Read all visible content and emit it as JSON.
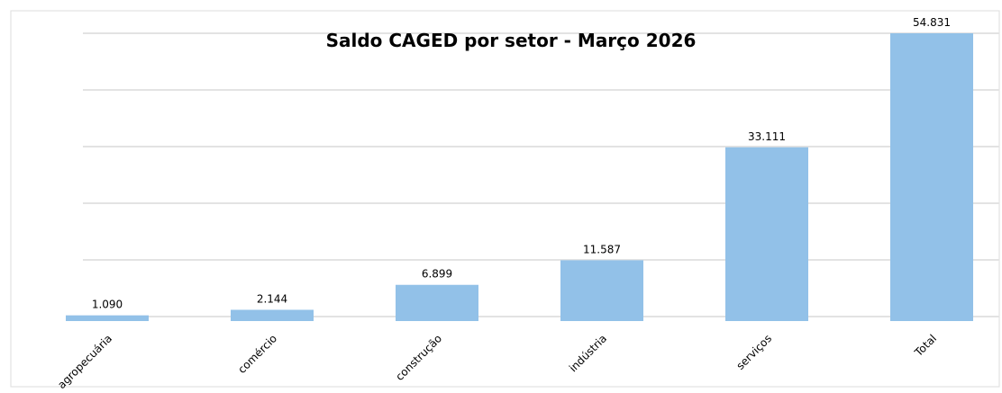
{
  "chart_data": {
    "type": "bar",
    "title": "Saldo CAGED por setor - Março 2026",
    "categories": [
      "agropecuária",
      "comércio",
      "construção",
      "indústria",
      "serviços",
      "Total"
    ],
    "values": [
      1090,
      2144,
      6899,
      11587,
      33111,
      54831
    ],
    "value_labels": [
      "1.090",
      "2.144",
      "6.899",
      "11.587",
      "33.111",
      "54.831"
    ],
    "color": "#92c1e8",
    "ylim": [
      0,
      55000
    ],
    "grid": true
  }
}
